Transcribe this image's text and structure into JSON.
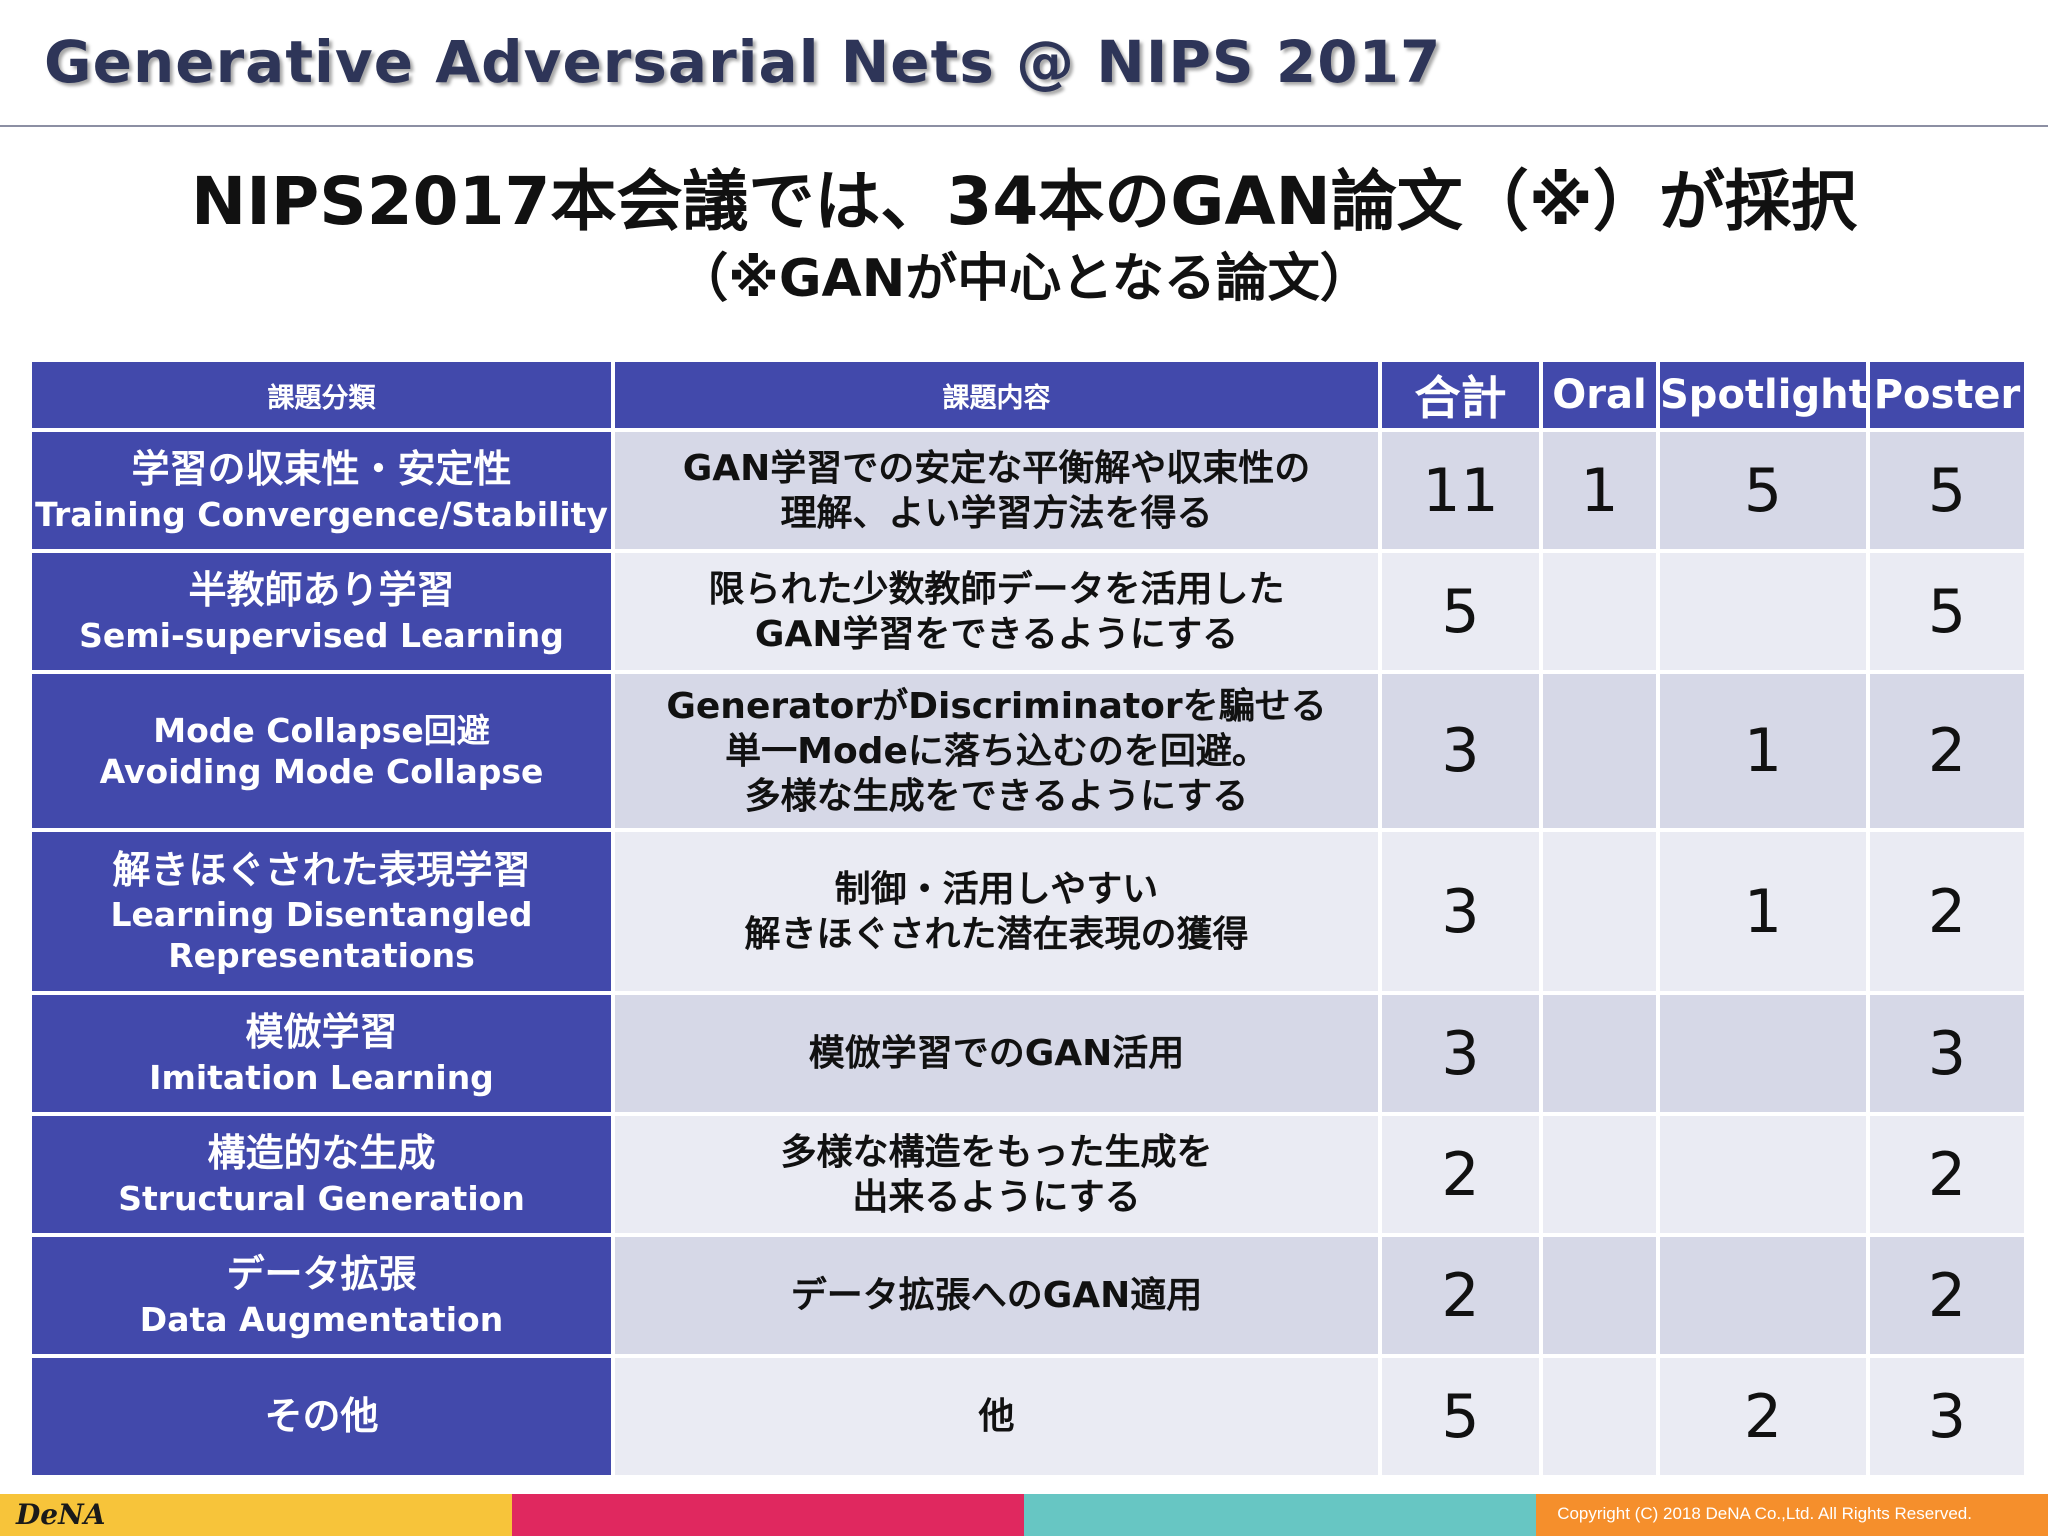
{
  "slide": {
    "title": "Generative Adversarial Nets @ NIPS 2017",
    "headline": "NIPS2017本会議では、34本のGAN論文（※）が採択",
    "subheadline": "（※GANが中心となる論文）"
  },
  "table": {
    "headers": [
      "課題分類",
      "課題内容",
      "合計",
      "Oral",
      "Spotlight",
      "Poster"
    ],
    "rows": [
      {
        "category_jp": "学習の収束性・安定性",
        "category_en": "Training Convergence/Stability",
        "category_en2": "",
        "desc": [
          "GAN学習での安定な平衡解や収束性の",
          "理解、よい学習方法を得る"
        ],
        "total": "11",
        "oral": "1",
        "spotlight": "5",
        "poster": "5"
      },
      {
        "category_jp": "半教師あり学習",
        "category_en": "Semi-supervised Learning",
        "category_en2": "",
        "desc": [
          "限られた少数教師データを活用した",
          "GAN学習をできるようにする"
        ],
        "total": "5",
        "oral": "",
        "spotlight": "",
        "poster": "5"
      },
      {
        "category_jp": "Mode Collapse回避",
        "category_en": "Avoiding Mode Collapse",
        "category_en2": "",
        "desc": [
          "GeneratorがDiscriminatorを騙せる",
          "単一Modeに落ち込むのを回避。",
          "多様な生成をできるようにする"
        ],
        "total": "3",
        "oral": "",
        "spotlight": "1",
        "poster": "2"
      },
      {
        "category_jp": "解きほぐされた表現学習",
        "category_en": "Learning Disentangled",
        "category_en2": "Representations",
        "desc": [
          "制御・活用しやすい",
          "解きほぐされた潜在表現の獲得"
        ],
        "total": "3",
        "oral": "",
        "spotlight": "1",
        "poster": "2"
      },
      {
        "category_jp": "模倣学習",
        "category_en": "Imitation Learning",
        "category_en2": "",
        "desc": [
          "模倣学習でのGAN活用"
        ],
        "total": "3",
        "oral": "",
        "spotlight": "",
        "poster": "3"
      },
      {
        "category_jp": "構造的な生成",
        "category_en": "Structural Generation",
        "category_en2": "",
        "desc": [
          "多様な構造をもった生成を",
          "出来るようにする"
        ],
        "total": "2",
        "oral": "",
        "spotlight": "",
        "poster": "2"
      },
      {
        "category_jp": "データ拡張",
        "category_en": "Data Augmentation",
        "category_en2": "",
        "desc": [
          "データ拡張へのGAN適用"
        ],
        "total": "2",
        "oral": "",
        "spotlight": "",
        "poster": "2"
      },
      {
        "category_jp": "その他",
        "category_en": "",
        "category_en2": "",
        "desc": [
          "他"
        ],
        "total": "5",
        "oral": "",
        "spotlight": "2",
        "poster": "3"
      }
    ]
  },
  "footer": {
    "logo": "DeNA",
    "copyright": "Copyright (C) 2018 DeNA Co.,Ltd. All Rights Reserved.",
    "colors": [
      "#f7c43a",
      "#e0285f",
      "#67c6c3",
      "#f58f2c"
    ]
  },
  "colors": {
    "header_bg": "#4249ab",
    "row_dark": "#d6d8e7",
    "row_light": "#eaebf3",
    "title": "#2e3558"
  }
}
